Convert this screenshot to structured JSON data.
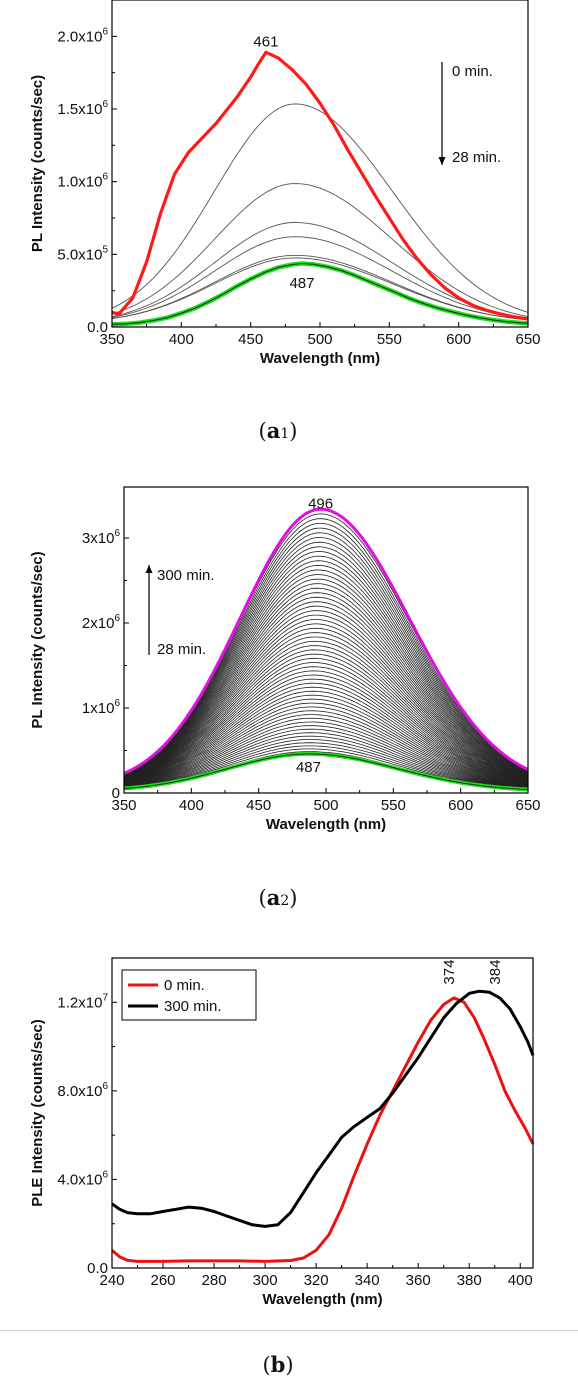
{
  "chart_data": [
    {
      "panel_label": "a",
      "panel_sub": "1",
      "type": "line",
      "xlabel": "Wavelength (nm)",
      "ylabel": "PL Intensity (counts/sec)",
      "xlim": [
        350,
        650
      ],
      "ylim": [
        0,
        2250000
      ],
      "xticks": [
        350,
        400,
        450,
        500,
        550,
        600,
        650
      ],
      "yticks": [
        {
          "value": 0,
          "label": "0.0"
        },
        {
          "value": 500000,
          "label": "5.0x10",
          "exp": "5"
        },
        {
          "value": 1000000,
          "label": "1.0x10",
          "exp": "6"
        },
        {
          "value": 1500000,
          "label": "1.5x10",
          "exp": "6"
        },
        {
          "value": 2000000,
          "label": "2.0x10",
          "exp": "6"
        }
      ],
      "annotations": [
        {
          "text": "461",
          "x": 461,
          "y": 1930000
        },
        {
          "text": "487",
          "x": 487,
          "y": 270000
        }
      ],
      "arrow": {
        "direction": "down",
        "top_text": "0 min.",
        "bottom_text": "28 min."
      },
      "bold_curves": [
        {
          "color": "#ff1a1a",
          "x": [
            350,
            355,
            365,
            375,
            385,
            395,
            405,
            415,
            425,
            440,
            450,
            455,
            461,
            470,
            480,
            490,
            500,
            510,
            520,
            530,
            540,
            550,
            560,
            570,
            580,
            590,
            600,
            610,
            620,
            630,
            640,
            650
          ],
          "y": [
            100000,
            90000,
            200000,
            450000,
            780000,
            1050000,
            1200000,
            1300000,
            1400000,
            1580000,
            1720000,
            1800000,
            1890000,
            1850000,
            1770000,
            1670000,
            1540000,
            1390000,
            1220000,
            1060000,
            900000,
            750000,
            600000,
            470000,
            360000,
            270000,
            200000,
            150000,
            115000,
            90000,
            70000,
            55000
          ]
        },
        {
          "color": "#22dd22",
          "x": [
            350,
            360,
            370,
            380,
            390,
            400,
            410,
            420,
            430,
            440,
            450,
            460,
            470,
            480,
            487,
            495,
            505,
            515,
            525,
            535,
            545,
            555,
            565,
            575,
            585,
            595,
            605,
            615,
            625,
            635,
            650
          ],
          "y": [
            18000,
            22000,
            30000,
            45000,
            65000,
            95000,
            130000,
            175000,
            225000,
            280000,
            330000,
            375000,
            410000,
            430000,
            437000,
            432000,
            415000,
            390000,
            355000,
            315000,
            275000,
            235000,
            195000,
            160000,
            130000,
            105000,
            82000,
            63000,
            48000,
            36000,
            25000
          ]
        }
      ],
      "thin_peaks": [
        1520000,
        970000,
        700000,
        600000,
        470000,
        450000
      ]
    },
    {
      "panel_label": "a",
      "panel_sub": "2",
      "type": "line",
      "xlabel": "Wavelength (nm)",
      "ylabel": "PL Intensity (counts/sec)",
      "xlim": [
        350,
        650
      ],
      "ylim": [
        0,
        3600000
      ],
      "xticks": [
        350,
        400,
        450,
        500,
        550,
        600,
        650
      ],
      "yticks": [
        {
          "value": 0,
          "label": "0"
        },
        {
          "value": 1000000,
          "label": "1x10",
          "exp": "6"
        },
        {
          "value": 2000000,
          "label": "2x10",
          "exp": "6"
        },
        {
          "value": 3000000,
          "label": "3x10",
          "exp": "6"
        }
      ],
      "annotations": [
        {
          "text": "496",
          "x": 496,
          "y": 3350000
        },
        {
          "text": "487",
          "x": 487,
          "y": 250000
        }
      ],
      "arrow": {
        "direction": "up",
        "top_text": "300 min.",
        "bottom_text": "28 min."
      },
      "top_peak": 3280000,
      "top_center": 496,
      "bottom_peak": 440000,
      "bottom_center": 487,
      "curve_count": 60
    },
    {
      "panel_label": "b",
      "type": "line",
      "xlabel": "Wavelength (nm)",
      "ylabel": "PLE Intensity (counts/sec)",
      "xlim": [
        240,
        405
      ],
      "ylim": [
        0,
        14000000
      ],
      "xticks": [
        240,
        260,
        280,
        300,
        320,
        340,
        360,
        380,
        400
      ],
      "yticks": [
        {
          "value": 0,
          "label": "0.0"
        },
        {
          "value": 4000000,
          "label": "4.0x10",
          "exp": "6"
        },
        {
          "value": 8000000,
          "label": "8.0x10",
          "exp": "6"
        },
        {
          "value": 12000000,
          "label": "1.2x10",
          "exp": "7"
        }
      ],
      "legend": {
        "position": "top-left"
      },
      "annotations": [
        {
          "text": "374",
          "x": 374,
          "y": 12800000
        },
        {
          "text": "384",
          "x": 392,
          "y": 12800000
        }
      ],
      "series": [
        {
          "name": "0 min.",
          "color": "#ee1111",
          "x": [
            240,
            243,
            246,
            250,
            260,
            270,
            280,
            290,
            300,
            310,
            315,
            320,
            325,
            330,
            335,
            340,
            345,
            350,
            355,
            360,
            365,
            370,
            374,
            378,
            382,
            386,
            390,
            394,
            398,
            402,
            405
          ],
          "y": [
            800000,
            500000,
            350000,
            300000,
            300000,
            320000,
            320000,
            320000,
            300000,
            340000,
            450000,
            800000,
            1500000,
            2700000,
            4200000,
            5600000,
            6900000,
            8000000,
            9100000,
            10200000,
            11200000,
            11900000,
            12200000,
            12000000,
            11300000,
            10300000,
            9200000,
            8000000,
            7100000,
            6300000,
            5600000
          ]
        },
        {
          "name": "300 min.",
          "color": "#000000",
          "x": [
            240,
            243,
            246,
            250,
            255,
            260,
            265,
            270,
            275,
            280,
            285,
            290,
            295,
            300,
            305,
            310,
            315,
            320,
            325,
            330,
            335,
            340,
            345,
            350,
            355,
            360,
            365,
            370,
            375,
            380,
            384,
            388,
            392,
            396,
            400,
            403,
            405
          ],
          "y": [
            2900000,
            2650000,
            2500000,
            2450000,
            2450000,
            2550000,
            2650000,
            2750000,
            2700000,
            2550000,
            2350000,
            2150000,
            1950000,
            1880000,
            1950000,
            2500000,
            3400000,
            4300000,
            5100000,
            5900000,
            6400000,
            6800000,
            7200000,
            7900000,
            8700000,
            9500000,
            10400000,
            11300000,
            11950000,
            12400000,
            12500000,
            12450000,
            12200000,
            11700000,
            10900000,
            10200000,
            9600000
          ]
        }
      ]
    }
  ]
}
